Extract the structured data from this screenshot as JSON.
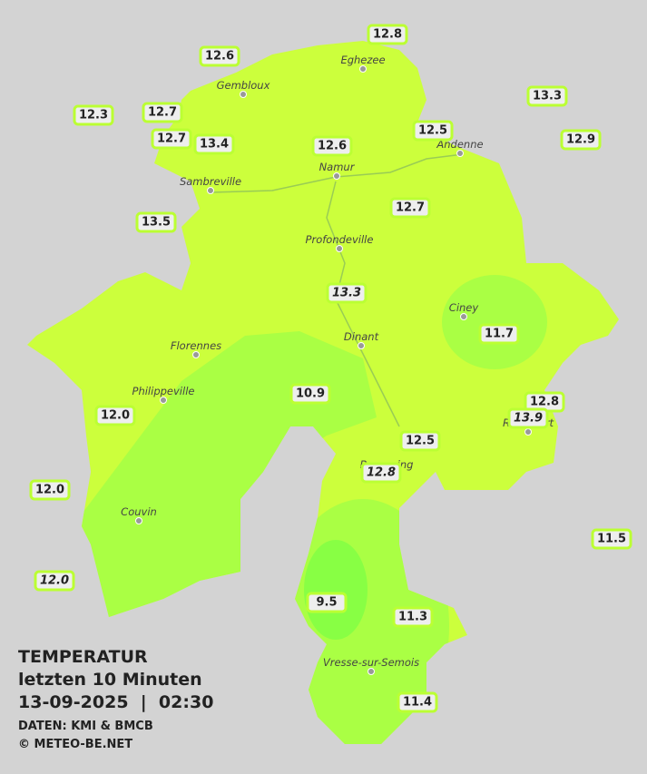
{
  "title": {
    "heading": "TEMPERATUR",
    "period": "letzten 10 Minuten",
    "datetime": "13-09-2025  |  02:30",
    "source": "DATEN: KMI & BMCB",
    "copyright": "© METEO-BE.NET"
  },
  "towns": [
    "Eghezee",
    "Gembloux",
    "Andenne",
    "Namur",
    "Sambreville",
    "Profondeville",
    "Ciney",
    "Dinant",
    "Florennes",
    "Philippeville",
    "Rochefort",
    "Beauraing",
    "Couvin",
    "Vresse-sur-Semois"
  ],
  "readings": [
    "12.8",
    "12.6",
    "13.3",
    "12.3",
    "12.7",
    "12.5",
    "12.9",
    "12.7",
    "13.4",
    "12.6",
    "12.7",
    "13.5",
    "13.3",
    "11.7",
    "10.9",
    "12.8",
    "13.9",
    "12.0",
    "12.5",
    "12.8",
    "12.0",
    "11.5",
    "12.0",
    "9.5",
    "11.3",
    "11.4"
  ]
}
